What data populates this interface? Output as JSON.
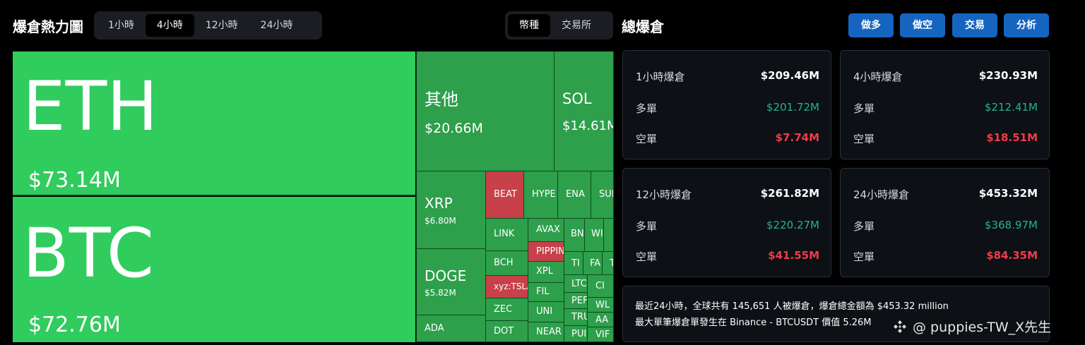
{
  "header": {
    "title": "爆倉熱力圖",
    "time_tabs": [
      {
        "label": "1小時",
        "active": false
      },
      {
        "label": "4小時",
        "active": true
      },
      {
        "label": "12小時",
        "active": false
      },
      {
        "label": "24小時",
        "active": false
      }
    ],
    "group_tabs": [
      {
        "label": "幣種",
        "active": true
      },
      {
        "label": "交易所",
        "active": false
      }
    ]
  },
  "right_header": {
    "title": "總爆倉",
    "buttons": [
      "做多",
      "做空",
      "交易",
      "分析"
    ]
  },
  "colors": {
    "big_green": "#30cc5e",
    "green": "#2e9f4b",
    "red": "#c8404a",
    "long_text": "#20b785",
    "short_text": "#f23b48",
    "button_blue": "#1565c0"
  },
  "treemap": {
    "eth": {
      "symbol": "ETH",
      "value": "$73.14M"
    },
    "btc": {
      "symbol": "BTC",
      "value": "$72.76M"
    },
    "other": {
      "symbol": "其他",
      "value": "$20.66M"
    },
    "sol": {
      "symbol": "SOL",
      "value": "$14.61M"
    },
    "xrp": {
      "symbol": "XRP",
      "value": "$6.80M"
    },
    "doge": {
      "symbol": "DOGE",
      "value": "$5.82M"
    },
    "ada": {
      "symbol": "ADA"
    },
    "small": [
      "BEAT",
      "HYPE",
      "ENA",
      "SUI",
      "LINK",
      "AVAX",
      "BN",
      "WI",
      "PIPPIN",
      "BCH",
      "TI",
      "FA",
      "T",
      "XPL",
      "xyz:TSLA",
      "LTC",
      "CI",
      "FIL",
      "PEF",
      "WL",
      "ZEC",
      "UNI",
      "TRU",
      "AA",
      "DOT",
      "NEAR",
      "PUI",
      "VIF"
    ]
  },
  "cards": [
    {
      "title": "1小時爆倉",
      "total": "$209.46M",
      "long_label": "多單",
      "long": "$201.72M",
      "short_label": "空單",
      "short": "$7.74M"
    },
    {
      "title": "4小時爆倉",
      "total": "$230.93M",
      "long_label": "多單",
      "long": "$212.41M",
      "short_label": "空單",
      "short": "$18.51M"
    },
    {
      "title": "12小時爆倉",
      "total": "$261.82M",
      "long_label": "多單",
      "long": "$220.27M",
      "short_label": "空單",
      "short": "$41.55M"
    },
    {
      "title": "24小時爆倉",
      "total": "$453.32M",
      "long_label": "多單",
      "long": "$368.97M",
      "short_label": "空單",
      "short": "$84.35M"
    }
  ],
  "summary": {
    "line1": "最近24小時，全球共有 145,651 人被爆倉，爆倉總金額為 $453.32 million",
    "line2": "最大單筆爆倉單發生在 Binance - BTCUSDT 價值 5.26M"
  },
  "watermark": "@ puppies-TW_X先生"
}
